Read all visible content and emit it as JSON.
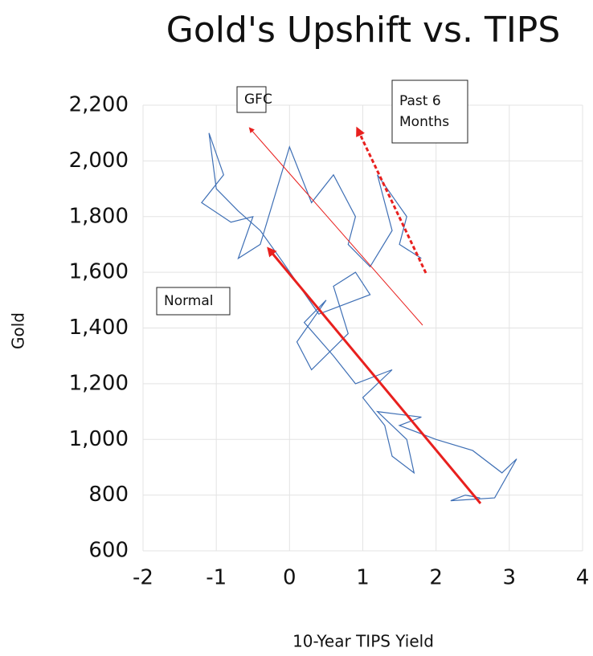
{
  "chart_data": {
    "type": "line",
    "title": "Gold's Upshift vs. TIPS",
    "x_label": "10-Year TIPS Yield",
    "y_label": "Gold",
    "color": "#3e6fb5",
    "grid": true,
    "xlim": [
      -2,
      4
    ],
    "xticks": [
      -2,
      -1,
      0,
      1,
      2,
      3,
      4
    ],
    "ylim": [
      600,
      2200
    ],
    "yticks": [
      {
        "value": 600,
        "label": "600"
      },
      {
        "value": 800,
        "label": "800"
      },
      {
        "value": 1000,
        "label": "1,000"
      },
      {
        "value": 1200,
        "label": "1,200"
      },
      {
        "value": 1400,
        "label": "1,400"
      },
      {
        "value": 1600,
        "label": "1,600"
      },
      {
        "value": 1800,
        "label": "1,800"
      },
      {
        "value": 2000,
        "label": "2,000"
      },
      {
        "value": 2200,
        "label": "2,200"
      }
    ],
    "annotations": [
      [
        "GFC"
      ],
      [
        "Past 6",
        "Months"
      ],
      [
        "Normal"
      ]
    ],
    "x": [
      2.6,
      2.4,
      2.2,
      2.8,
      3.1,
      2.9,
      2.5,
      2.0,
      1.5,
      1.8,
      1.2,
      1.6,
      1.7,
      1.4,
      1.3,
      1.0,
      1.4,
      0.9,
      0.6,
      0.2,
      0.5,
      0.1,
      0.3,
      0.8,
      0.6,
      0.9,
      1.1,
      0.4,
      -0.1,
      -0.4,
      -0.7,
      -1.0,
      -1.1,
      -0.9,
      -1.2,
      -0.8,
      -0.5,
      -0.7,
      -0.4,
      0.0,
      0.3,
      0.6,
      0.9,
      0.8,
      1.1,
      1.4,
      1.3,
      1.2,
      1.6,
      1.5,
      1.8
    ],
    "values": [
      790,
      800,
      780,
      790,
      930,
      880,
      960,
      1000,
      1050,
      1080,
      1100,
      1000,
      880,
      940,
      1050,
      1150,
      1250,
      1200,
      1300,
      1420,
      1500,
      1350,
      1250,
      1380,
      1550,
      1600,
      1520,
      1450,
      1640,
      1750,
      1820,
      1900,
      2100,
      1950,
      1850,
      1780,
      1800,
      1650,
      1700,
      2050,
      1850,
      1950,
      1800,
      1700,
      1620,
      1750,
      1850,
      1950,
      1800,
      1700,
      1650
    ]
  }
}
